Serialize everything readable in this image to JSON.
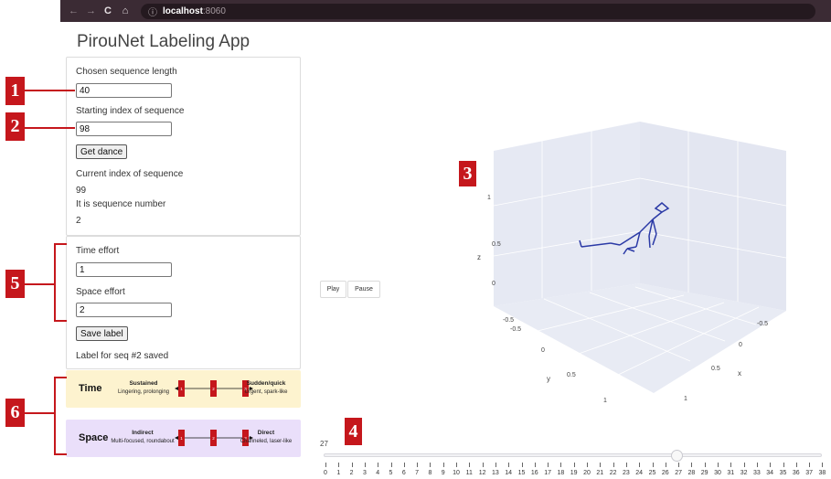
{
  "browser": {
    "back_icon": "←",
    "forward_icon": "→",
    "reload_icon": "C",
    "home_icon": "⌂",
    "info_icon": "ⓘ",
    "url_host": "localhost",
    "url_port": ":8060"
  },
  "app_title": "PirouNet Labeling App",
  "sequence_panel": {
    "length_label": "Chosen sequence length",
    "length_value": "40",
    "start_label": "Starting index of sequence",
    "start_value": "98",
    "get_dance_label": "Get dance",
    "current_index_label": "Current index of sequence",
    "current_index_value": "99",
    "sequence_number_label": "It is sequence number",
    "sequence_number_value": "2"
  },
  "label_panel": {
    "time_effort_label": "Time effort",
    "time_effort_value": "1",
    "space_effort_label": "Space effort",
    "space_effort_value": "2",
    "save_label": "Save label",
    "status_text": "Label for seq #2 saved"
  },
  "effort_legend": [
    {
      "name": "Time",
      "left_head": "Sustained",
      "left_desc": "Lingering, prolonging",
      "right_head": "Sudden/quick",
      "right_desc": "Urgent, spark-like",
      "scale": [
        "1",
        "2",
        "3"
      ]
    },
    {
      "name": "Space",
      "left_head": "Indirect",
      "left_desc": "Multi-focused, roundabout",
      "right_head": "Direct",
      "right_desc": "Channeled, laser-like",
      "scale": [
        "1",
        "2",
        "3"
      ]
    }
  ],
  "annotation_markers": [
    "1",
    "2",
    "3",
    "4",
    "5",
    "6"
  ],
  "playback": {
    "play_label": "Play",
    "pause_label": "Pause"
  },
  "scene3d": {
    "z_axis_label": "z",
    "y_axis_label": "y",
    "x_axis_label": "x",
    "z_ticks": [
      "-0.5",
      "0",
      "0.5",
      "1"
    ],
    "y_ticks": [
      "-0.5",
      "0",
      "0.5",
      "1"
    ],
    "x_ticks": [
      "-0.5",
      "0",
      "0.5",
      "1"
    ],
    "line_color": "#2b3aa6"
  },
  "slider": {
    "current_value": "27",
    "min": 0,
    "max": 38,
    "tick_labels": [
      "0",
      "1",
      "2",
      "3",
      "4",
      "5",
      "6",
      "7",
      "8",
      "9",
      "10",
      "11",
      "12",
      "13",
      "14",
      "15",
      "16",
      "17",
      "18",
      "19",
      "20",
      "21",
      "22",
      "23",
      "24",
      "25",
      "26",
      "27",
      "28",
      "29",
      "30",
      "31",
      "32",
      "33",
      "34",
      "35",
      "36",
      "37",
      "38"
    ]
  },
  "colors": {
    "marker_red": "#c5171c",
    "time_bg": "#fdf3cf",
    "space_bg": "#eadffa",
    "scene_bg": "#e6e9f3"
  }
}
